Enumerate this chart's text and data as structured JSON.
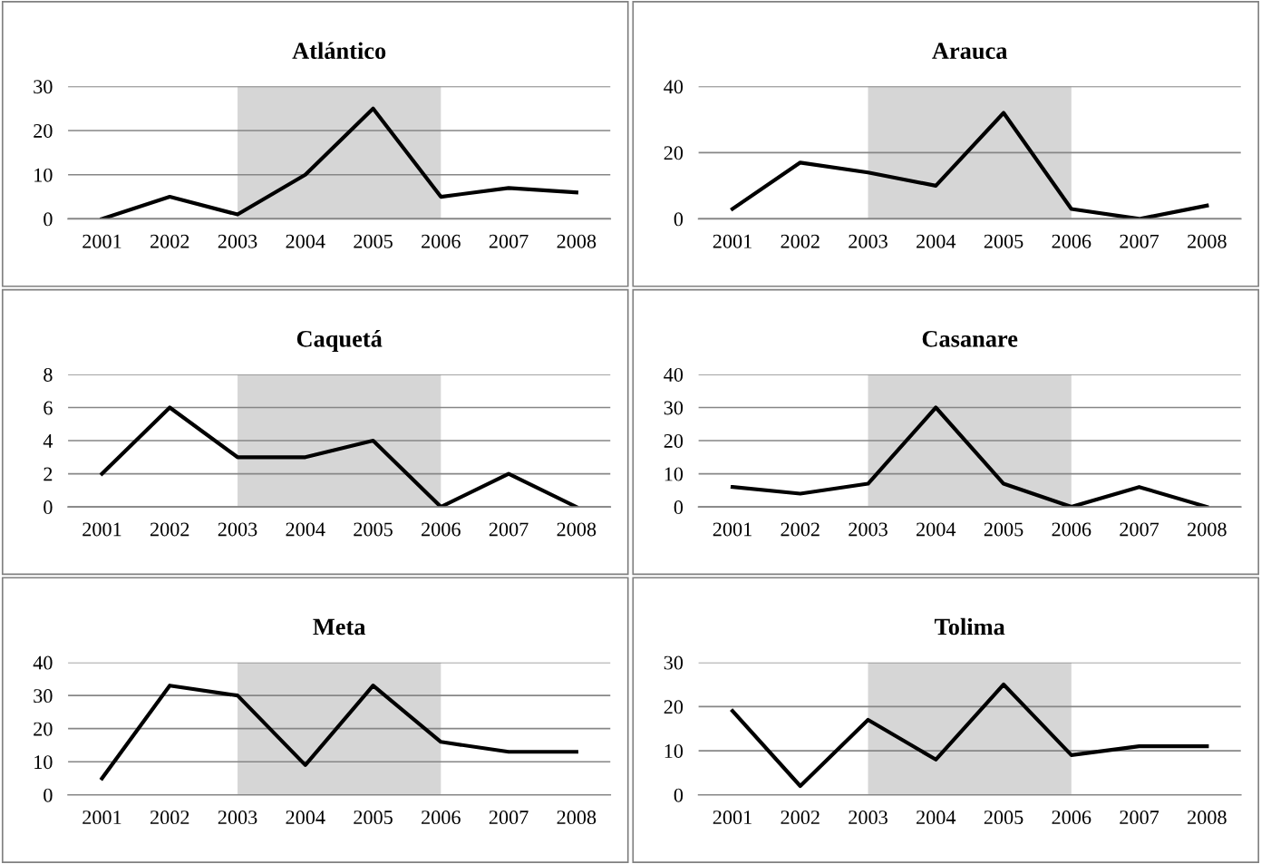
{
  "chart_data": [
    {
      "type": "line",
      "title": "Atlántico",
      "categories": [
        "2001",
        "2002",
        "2003",
        "2004",
        "2005",
        "2006",
        "2007",
        "2008"
      ],
      "series": [
        {
          "color": "#000000",
          "values": [
            0,
            5,
            1,
            10,
            25,
            5,
            7,
            6
          ]
        }
      ],
      "ylim": [
        0,
        30
      ],
      "yticks": [
        0,
        10,
        20,
        30
      ],
      "grid": "y",
      "legend": false,
      "marker": "none",
      "line_style": "solid",
      "bands": [
        {
          "axis": "x",
          "from": "2003",
          "to": "2006",
          "color": "#c8c8c8"
        }
      ]
    },
    {
      "type": "line",
      "title": "Arauca",
      "categories": [
        "2001",
        "2002",
        "2003",
        "2004",
        "2005",
        "2006",
        "2007",
        "2008"
      ],
      "series": [
        {
          "color": "#000000",
          "values": [
            3,
            17,
            14,
            10,
            32,
            3,
            0,
            4
          ]
        }
      ],
      "ylim": [
        0,
        40
      ],
      "yticks": [
        0,
        20,
        40
      ],
      "grid": "y",
      "legend": false,
      "marker": "none",
      "line_style": "solid",
      "bands": [
        {
          "axis": "x",
          "from": "2003",
          "to": "2006",
          "color": "#c8c8c8"
        }
      ]
    },
    {
      "type": "line",
      "title": "Caquetá",
      "categories": [
        "2001",
        "2002",
        "2003",
        "2004",
        "2005",
        "2006",
        "2007",
        "2008"
      ],
      "series": [
        {
          "color": "#000000",
          "values": [
            2,
            6,
            3,
            3,
            4,
            0,
            2,
            0
          ]
        }
      ],
      "ylim": [
        0,
        8
      ],
      "yticks": [
        0,
        2,
        4,
        6,
        8
      ],
      "grid": "y",
      "legend": false,
      "marker": "none",
      "line_style": "solid",
      "bands": [
        {
          "axis": "x",
          "from": "2003",
          "to": "2006",
          "color": "#c8c8c8"
        }
      ]
    },
    {
      "type": "line",
      "title": "Casanare",
      "categories": [
        "2001",
        "2002",
        "2003",
        "2004",
        "2005",
        "2006",
        "2007",
        "2008"
      ],
      "series": [
        {
          "color": "#000000",
          "values": [
            6,
            4,
            7,
            30,
            7,
            0,
            6,
            0
          ]
        }
      ],
      "ylim": [
        0,
        40
      ],
      "yticks": [
        0,
        10,
        20,
        30,
        40
      ],
      "grid": "y",
      "legend": false,
      "marker": "none",
      "line_style": "solid",
      "bands": [
        {
          "axis": "x",
          "from": "2003",
          "to": "2006",
          "color": "#c8c8c8"
        }
      ]
    },
    {
      "type": "line",
      "title": "Meta",
      "categories": [
        "2001",
        "2002",
        "2003",
        "2004",
        "2005",
        "2006",
        "2007",
        "2008"
      ],
      "series": [
        {
          "color": "#000000",
          "values": [
            5,
            33,
            30,
            9,
            33,
            16,
            13,
            13
          ]
        }
      ],
      "ylim": [
        0,
        40
      ],
      "yticks": [
        0,
        10,
        20,
        30,
        40
      ],
      "grid": "y",
      "legend": false,
      "marker": "none",
      "line_style": "solid",
      "bands": [
        {
          "axis": "x",
          "from": "2003",
          "to": "2006",
          "color": "#c8c8c8"
        }
      ]
    },
    {
      "type": "line",
      "title": "Tolima",
      "categories": [
        "2001",
        "2002",
        "2003",
        "2004",
        "2005",
        "2006",
        "2007",
        "2008"
      ],
      "series": [
        {
          "color": "#000000",
          "values": [
            19,
            2,
            17,
            8,
            25,
            9,
            11,
            11
          ]
        }
      ],
      "ylim": [
        0,
        30
      ],
      "yticks": [
        0,
        10,
        20,
        30
      ],
      "grid": "y",
      "legend": false,
      "marker": "none",
      "line_style": "solid",
      "bands": [
        {
          "axis": "x",
          "from": "2003",
          "to": "2006",
          "color": "#c8c8c8"
        }
      ]
    }
  ]
}
